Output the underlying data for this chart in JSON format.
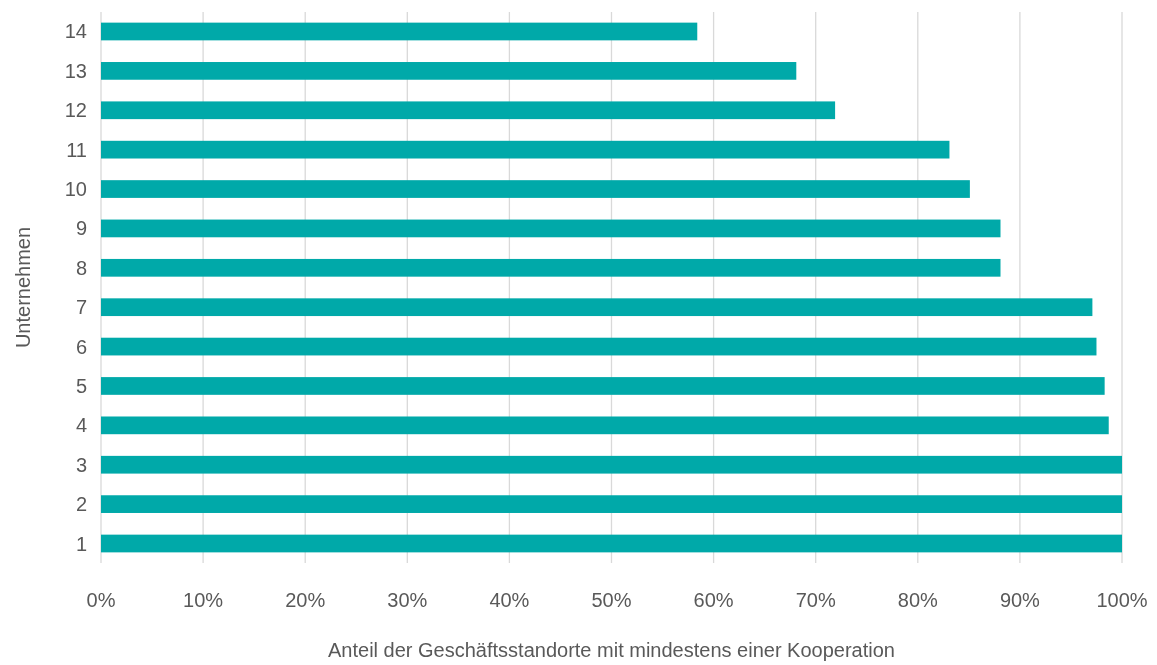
{
  "chart_data": {
    "type": "bar",
    "orientation": "horizontal",
    "xlabel": "Anteil der Geschäftsstandorte mit mindestens einer Kooperation",
    "ylabel": "Unternehmen",
    "categories": [
      "14",
      "13",
      "12",
      "11",
      "10",
      "9",
      "8",
      "7",
      "6",
      "5",
      "4",
      "3",
      "2",
      "1"
    ],
    "values": [
      58.4,
      68.1,
      71.9,
      83.1,
      85.1,
      88.1,
      88.1,
      97.1,
      97.5,
      98.3,
      98.7,
      100,
      100,
      100
    ],
    "color": "#00a9a9",
    "xlim": [
      0,
      100
    ],
    "xticks": [
      {
        "value": 0,
        "label": "0%"
      },
      {
        "value": 10,
        "label": "10%"
      },
      {
        "value": 20,
        "label": "20%"
      },
      {
        "value": 30,
        "label": "30%"
      },
      {
        "value": 40,
        "label": "40%"
      },
      {
        "value": 50,
        "label": "50%"
      },
      {
        "value": 60,
        "label": "60%"
      },
      {
        "value": 70,
        "label": "70%"
      },
      {
        "value": 80,
        "label": "80%"
      },
      {
        "value": 90,
        "label": "90%"
      },
      {
        "value": 100,
        "label": "100%"
      }
    ],
    "grid": "x"
  }
}
